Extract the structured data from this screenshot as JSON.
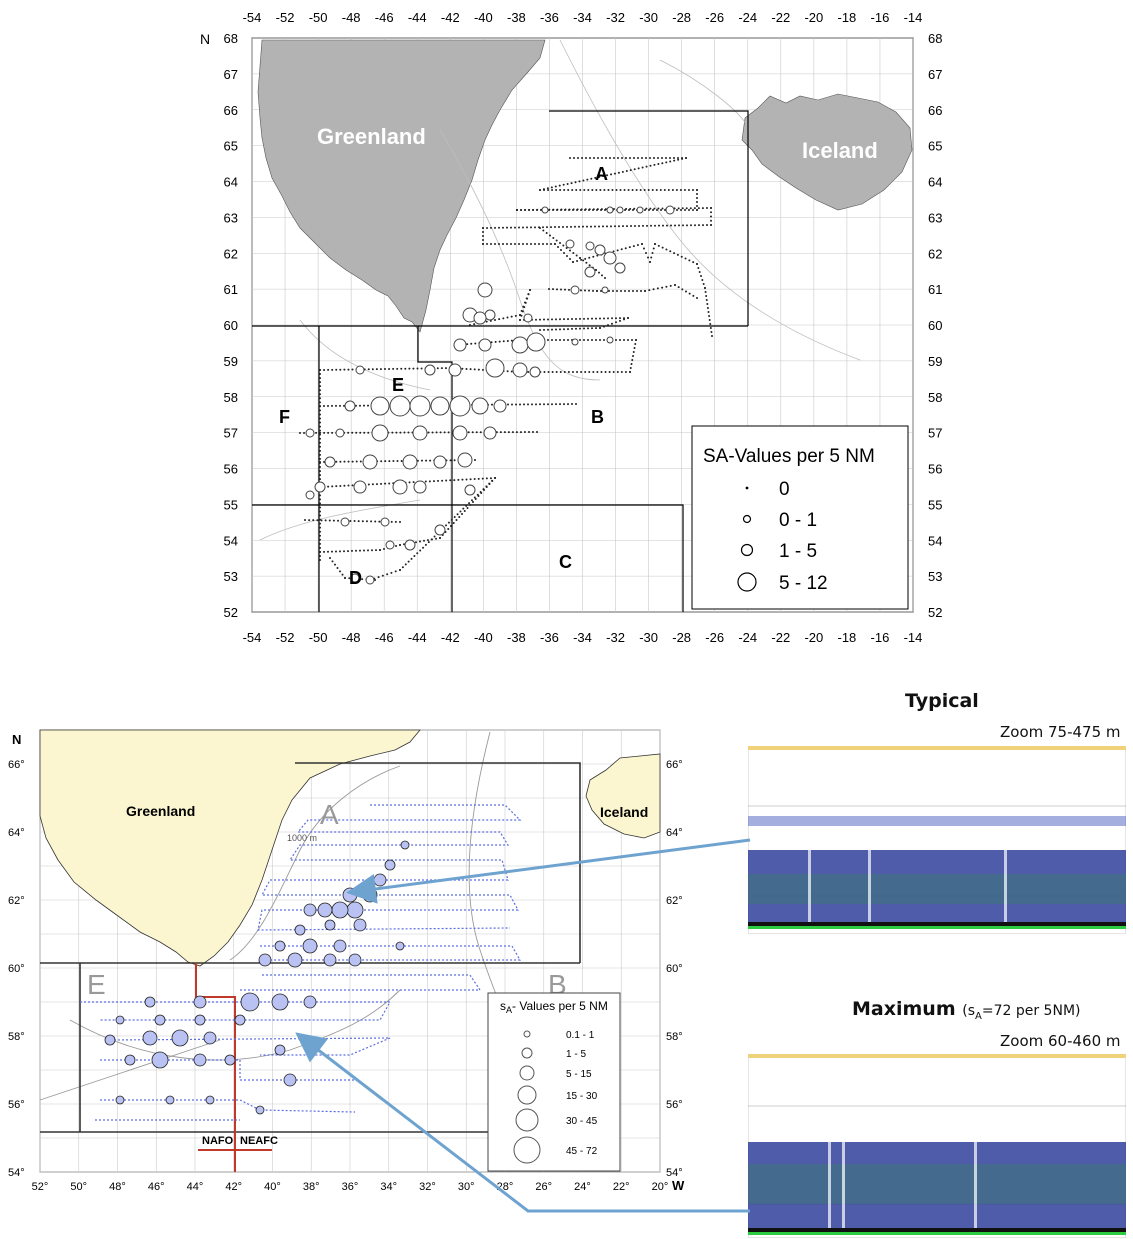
{
  "top_map": {
    "north_label": "N",
    "lon_ticks": [
      "-54",
      "-52",
      "-50",
      "-48",
      "-46",
      "-44",
      "-42",
      "-40",
      "-38",
      "-36",
      "-34",
      "-32",
      "-30",
      "-28",
      "-26",
      "-24",
      "-22",
      "-20",
      "-18",
      "-16",
      "-14"
    ],
    "lat_ticks": [
      "52",
      "53",
      "54",
      "55",
      "56",
      "57",
      "58",
      "59",
      "60",
      "61",
      "62",
      "63",
      "64",
      "65",
      "66",
      "67",
      "68"
    ],
    "land_labels": {
      "greenland": "Greenland",
      "iceland": "Iceland"
    },
    "area_labels": {
      "A": "A",
      "B": "B",
      "C": "C",
      "D": "D",
      "E": "E",
      "F": "F"
    },
    "legend": {
      "title": "SA-Values per 5 NM",
      "items": [
        {
          "label": "0"
        },
        {
          "label": "0  -  1"
        },
        {
          "label": "1  -  5"
        },
        {
          "label": "5  -  12"
        }
      ]
    }
  },
  "bottom_map": {
    "north_label": "N",
    "west_label": "W",
    "lon_ticks": [
      "52°",
      "50°",
      "48°",
      "46°",
      "44°",
      "42°",
      "40°",
      "38°",
      "36°",
      "34°",
      "32°",
      "30°",
      "28°",
      "26°",
      "24°",
      "22°",
      "20°"
    ],
    "lat_ticks": [
      "54°",
      "56°",
      "58°",
      "60°",
      "62°",
      "64°",
      "66°"
    ],
    "land_labels": {
      "greenland": "Greenland",
      "iceland": "Iceland"
    },
    "area_labels": {
      "A": "A",
      "B": "B",
      "E": "E"
    },
    "depth_label": "1000 m",
    "nafo_label": "NAFO",
    "neafc_label": "NEAFC",
    "legend": {
      "title_prefix": "s",
      "title_sub": "A",
      "title_rest": "- Values per 5 NM",
      "items": [
        {
          "label": "0.1 - 1"
        },
        {
          "label": "1 - 5"
        },
        {
          "label": "5 - 15"
        },
        {
          "label": "15 - 30"
        },
        {
          "label": "30 - 45"
        },
        {
          "label": "45 - 72"
        }
      ]
    }
  },
  "echograms": {
    "typical": {
      "title": "Typical",
      "zoom": "Zoom 75-475 m"
    },
    "maximum": {
      "title": "Maximum",
      "note_prefix": "(s",
      "note_sub": "A",
      "note_rest": "=72 per 5NM)",
      "zoom": "Zoom 60-460 m"
    }
  },
  "colors": {
    "land_top": "#b3b3b3",
    "land_bottom": "#fbf6cf",
    "arrow": "#6ea3d0",
    "nafo_line": "#c0392b",
    "track_blue": "#5a6de0",
    "echo_blue": "#2f3f9a"
  }
}
